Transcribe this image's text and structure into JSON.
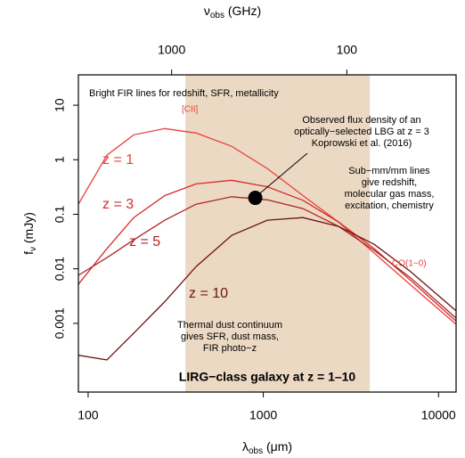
{
  "chart_data": {
    "type": "line",
    "title": "LIRG−class galaxy at z = 1–10",
    "x_label": {
      "symbol": "λ",
      "sub": "obs",
      "unit": " (μm)"
    },
    "x2_label": {
      "symbol": "ν",
      "sub": "obs",
      "unit": " (GHz)"
    },
    "y_label": {
      "symbol": "f",
      "sub": "ν",
      "unit": " (mJy)"
    },
    "log_x": true,
    "log_y": true,
    "xlim": [
      88,
      12600
    ],
    "ylim": [
      5.5e-05,
      36
    ],
    "xticks": [
      100,
      1000,
      10000
    ],
    "x2ticks": [
      1000,
      100
    ],
    "yticks": [
      10,
      1,
      0.1,
      0.01,
      0.001
    ],
    "shaded_range": {
      "x": [
        359,
        4054
      ],
      "color": "#ecd9c4"
    },
    "x": [
      88,
      128,
      182,
      274,
      413,
      659,
      1054,
      1683,
      2690,
      4300,
      6870,
      12600
    ],
    "series": [
      {
        "name": "z = 1",
        "color": "#e8413a",
        "values": [
          0.153,
          1.21,
          2.86,
          3.72,
          3.09,
          1.76,
          0.69,
          0.22,
          0.072,
          0.0194,
          0.0052,
          0.00096
        ]
      },
      {
        "name": "z = 3",
        "color": "#d42b2b",
        "values": [
          0.0052,
          0.0234,
          0.087,
          0.22,
          0.36,
          0.42,
          0.32,
          0.18,
          0.072,
          0.0234,
          0.0063,
          0.0011
        ]
      },
      {
        "name": "z = 5",
        "color": "#b22222",
        "values": [
          0.0076,
          0.016,
          0.034,
          0.078,
          0.153,
          0.21,
          0.184,
          0.127,
          0.06,
          0.0217,
          0.007,
          0.00125
        ]
      },
      {
        "name": "z = 10",
        "color": "#6b1414",
        "values": [
          0.00026,
          0.000214,
          0.00066,
          0.0025,
          0.011,
          0.041,
          0.078,
          0.087,
          0.06,
          0.028,
          0.0091,
          0.0017
        ]
      }
    ],
    "point": {
      "x": 900,
      "y": 0.2,
      "color": "#000000"
    },
    "annotations": {
      "fir_lines": [
        "Bright FIR lines for redshift, SFR, metallicity"
      ],
      "lbg": [
        "Observed flux density of an",
        "optically−selected LBG at z = 3",
        "Koprowski et al. (2016)"
      ],
      "submm": [
        "Sub−mm/mm lines",
        "give redshift,",
        "molecular gas mass,",
        "excitation, chemistry"
      ],
      "dust": [
        "Thermal dust continuum",
        "gives SFR, dust mass,",
        "FIR photo−z"
      ],
      "cii": [
        "[CII]"
      ],
      "co": [
        "CO(1−0)"
      ]
    }
  }
}
